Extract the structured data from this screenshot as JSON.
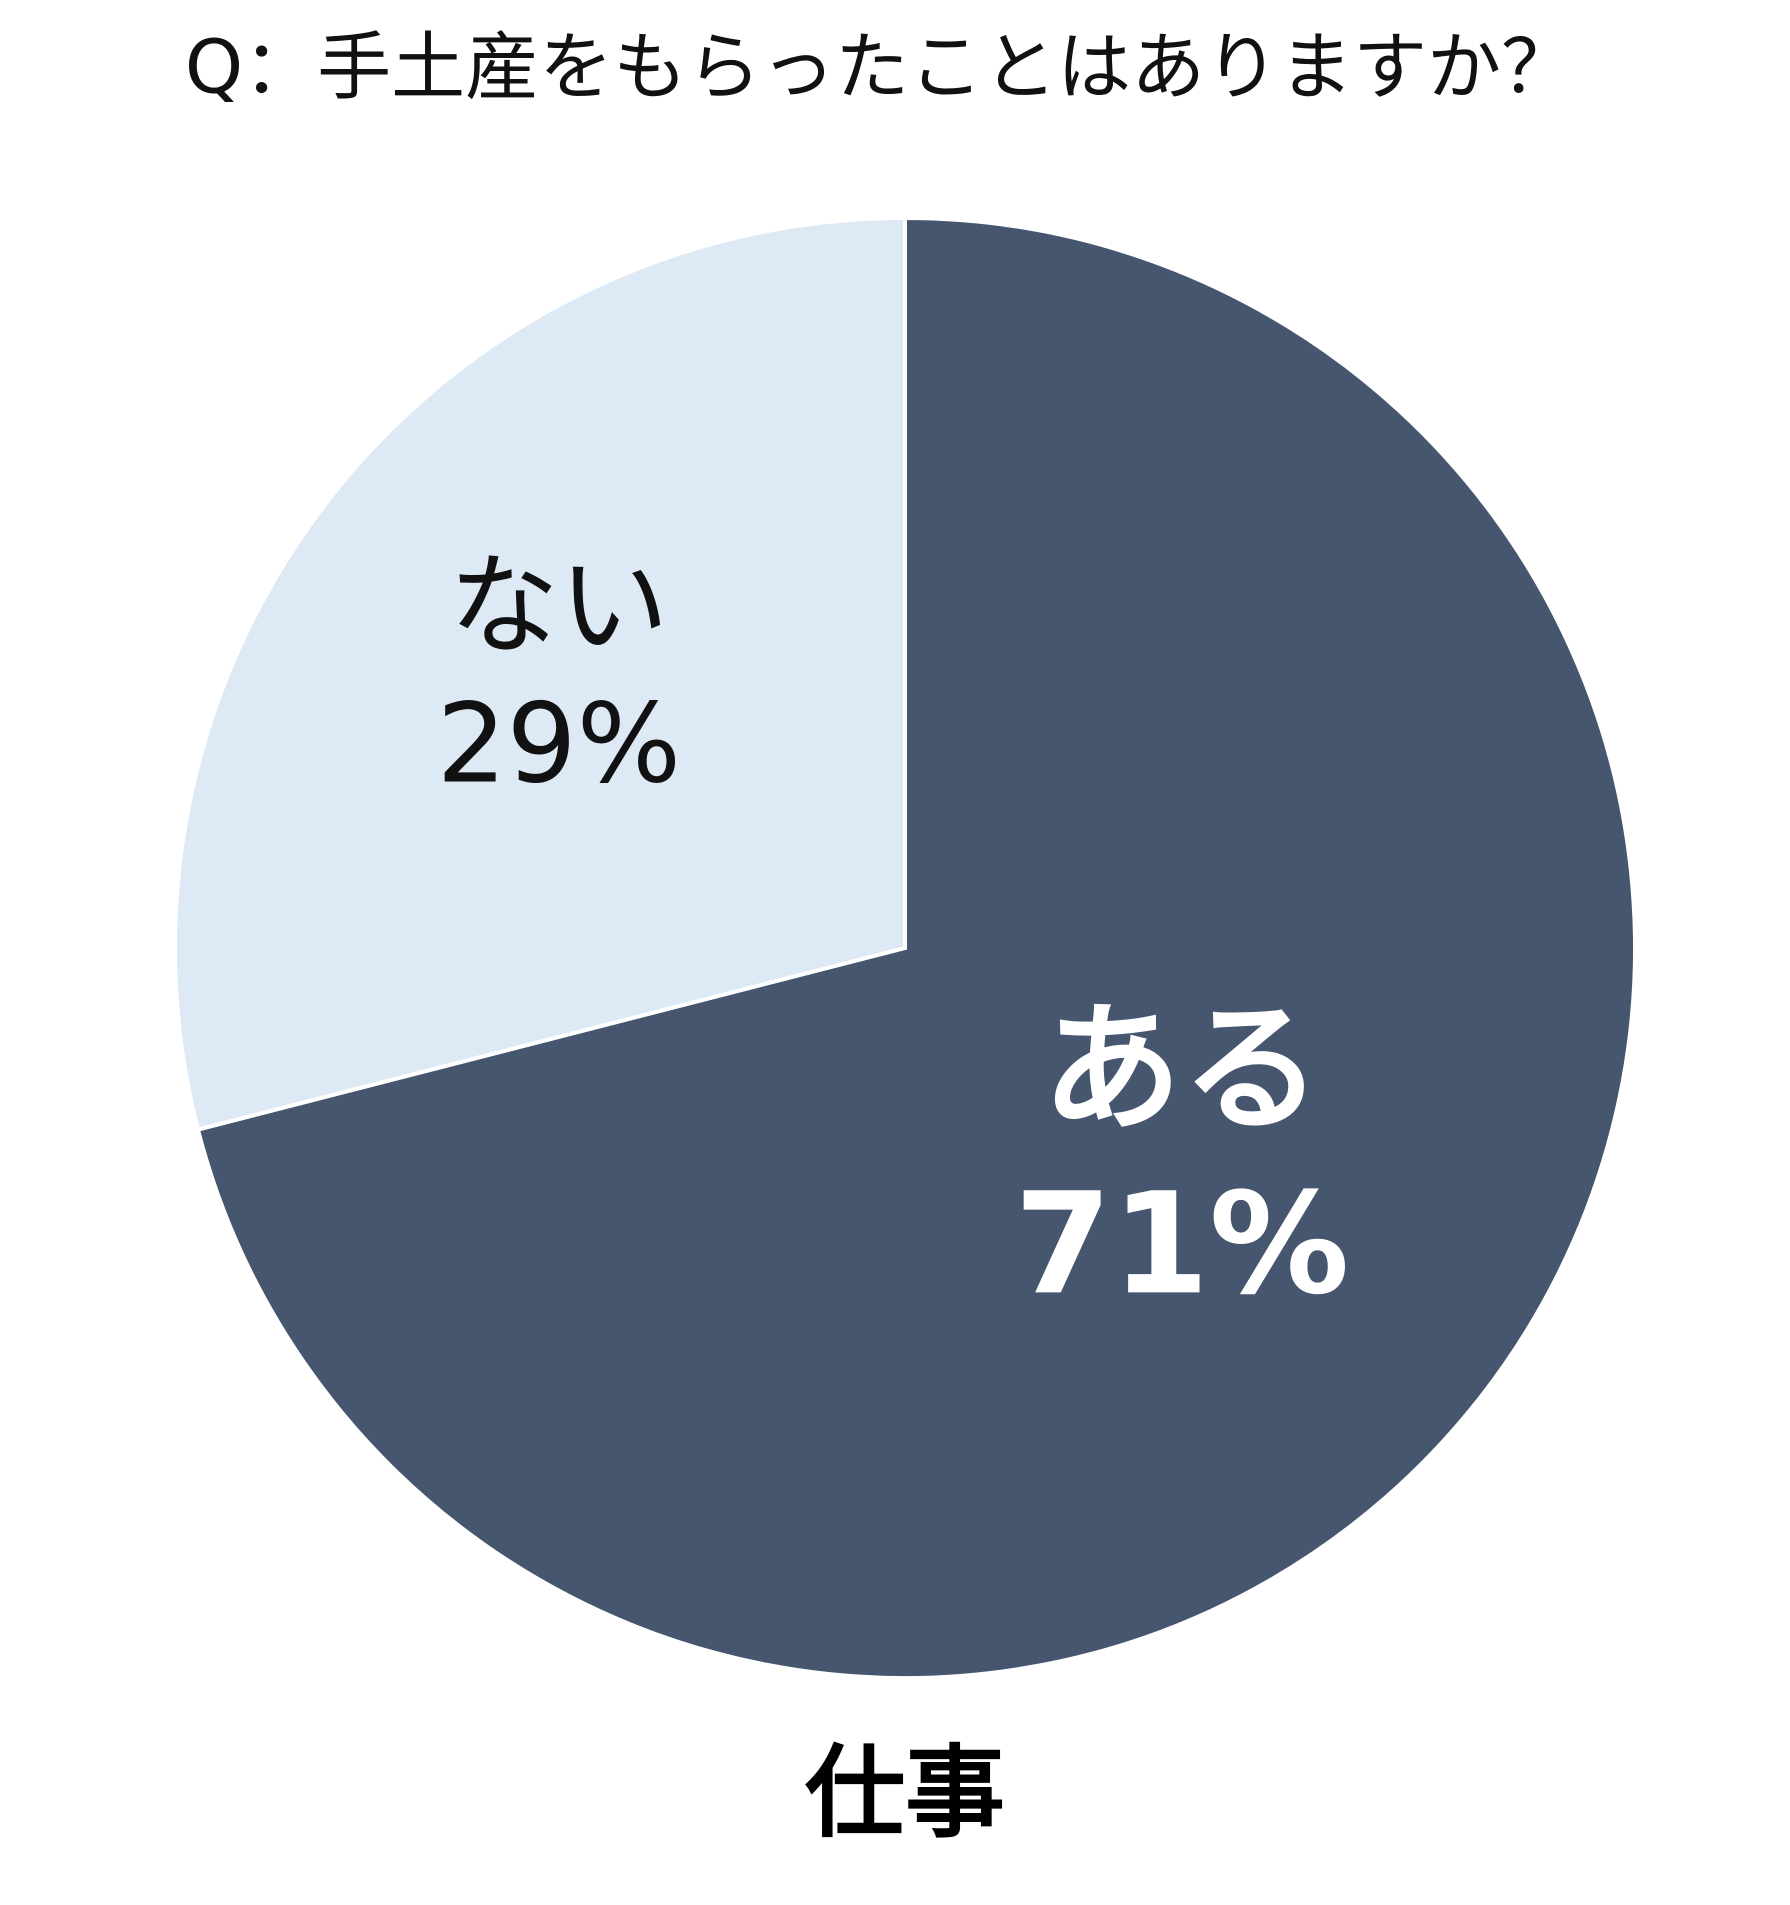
{
  "chart_data": {
    "type": "pie",
    "title": "Q：手土産をもらったことはありますか？",
    "categories": [
      "ある",
      "ない"
    ],
    "values": [
      71,
      29
    ],
    "value_labels": [
      "71%",
      "29%"
    ],
    "colors": [
      "#46566e",
      "#dde9f5"
    ],
    "caption": "仕事"
  }
}
